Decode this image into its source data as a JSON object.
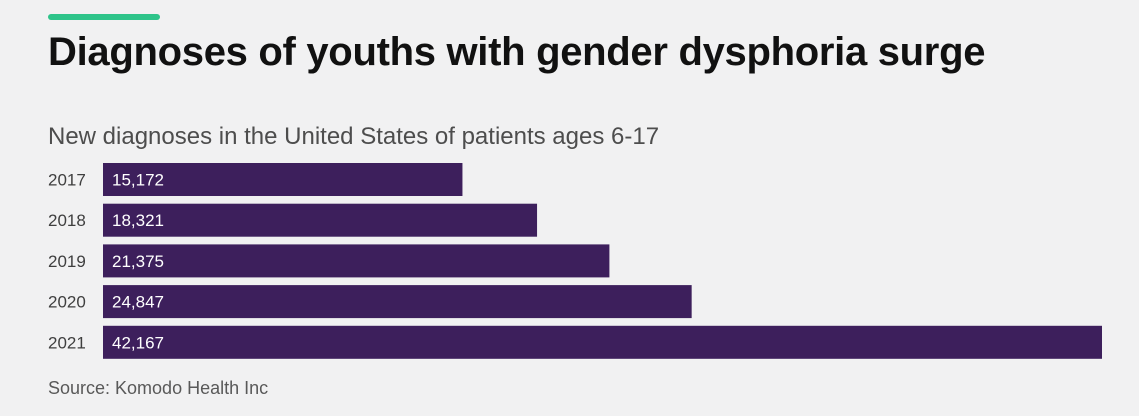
{
  "header": {
    "accent_color": "#2ec48a"
  },
  "source_note": "Source: Komodo Health Inc",
  "chart_data": {
    "type": "bar",
    "orientation": "horizontal",
    "title": "Diagnoses of youths with gender dysphoria surge",
    "subtitle": "New diagnoses in the United States of patients ages 6-17",
    "categories": [
      "2017",
      "2018",
      "2019",
      "2020",
      "2021"
    ],
    "values": [
      15172,
      18321,
      21375,
      24847,
      42167
    ],
    "value_labels": [
      "15,172",
      "18,321",
      "21,375",
      "24,847",
      "42,167"
    ],
    "xlim": [
      0,
      42167
    ],
    "grid": false,
    "bar_color": "#3d1f5c",
    "label_color": "#ffffff"
  }
}
